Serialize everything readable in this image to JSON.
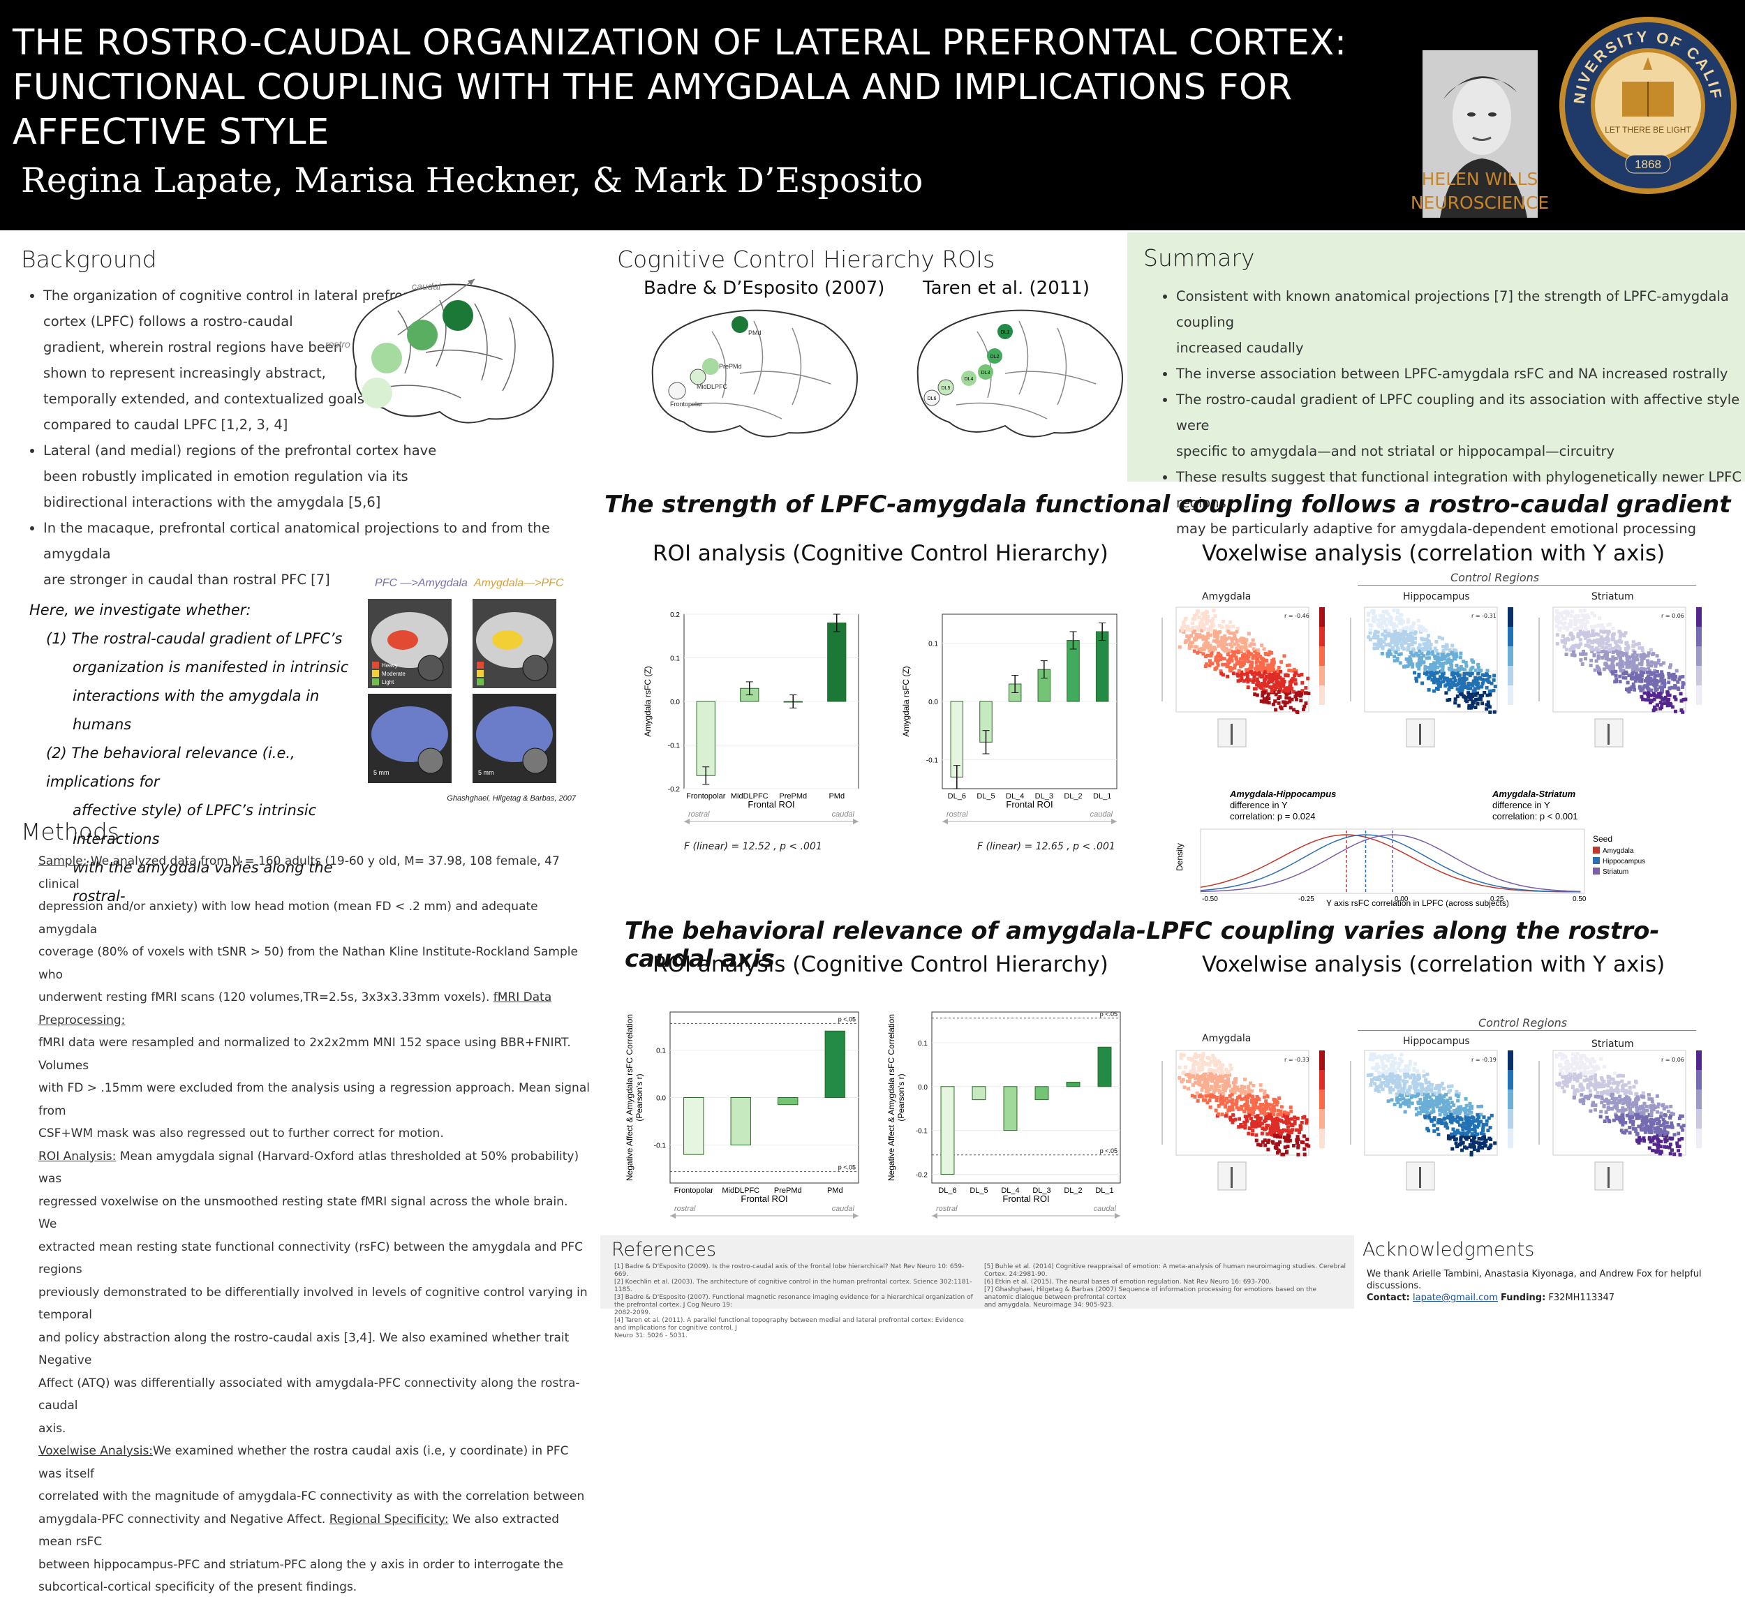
{
  "header": {
    "title_lines": [
      "THE ROSTRO-CAUDAL ORGANIZATION OF LATERAL PREFRONTAL CORTEX:",
      "FUNCTIONAL COUPLING WITH THE AMYGDALA AND IMPLICATIONS FOR",
      "AFFECTIVE STYLE"
    ],
    "authors": "Regina Lapate, Marisa Heckner, & Mark D’Esposito",
    "logo_text_1": "HELEN WILLS",
    "logo_text_2": "NEUROSCIENCE",
    "seal_text": "THE UNIVERSITY OF CALIFORNIA",
    "seal_year": "1868",
    "seal_motto": "LET THERE BE LIGHT",
    "colors": {
      "bg": "#000000",
      "text": "#ffffff",
      "logo": "#c8862a",
      "seal_gold": "#c58a2a",
      "seal_blue": "#1f3a68"
    }
  },
  "background": {
    "heading": "Background",
    "bullets": [
      [
        "The organization of cognitive control in lateral prefrontal",
        "cortex (LPFC) follows a rostro-caudal",
        "gradient, wherein rostral regions have been",
        "shown to represent increasingly abstract,",
        "temporally extended, and contextualized goals",
        "compared to caudal LPFC [1,2, 3, 4]"
      ],
      [
        "Lateral (and medial) regions of the prefrontal cortex have",
        "been robustly implicated in emotion regulation via its",
        "bidirectional interactions with the amygdala [5,6]"
      ],
      [
        "In the macaque, prefrontal cortical anatomical projections to and from the amygdala",
        "are stronger in caudal than rostral PFC [7]"
      ]
    ],
    "brain_label_caudal": "caudal",
    "brain_label_rostro": "rostro",
    "investigate_lines": [
      "Here, we investigate whether:",
      "(1)  The rostral-caudal gradient of LPFC’s",
      "organization is manifested in intrinsic",
      "interactions with the amygdala in humans",
      "(2)  The behavioral relevance (i.e., implications for",
      "affective style) of LPFC’s intrinsic interactions",
      "with the amygdala varies along the rostral-"
    ],
    "macaque_label_1": "PFC —>Amygdala",
    "macaque_label_2": "Amygdala—>PFC",
    "macaque_legend": [
      "Heavy",
      "Moderate",
      "Light"
    ],
    "macaque_scale": "5 mm",
    "macaque_credit": "Ghashghaei, Hilgetag & Barbas, 2007"
  },
  "methods": {
    "heading": "Methods",
    "lines": [
      [
        {
          "u": "Sample:"
        },
        " We analyzed data from N = 160 adults (19-60 y old, M= 37.98, 108 female, 47 clinical"
      ],
      [
        "depression and/or anxiety) with low head motion (mean FD < .2 mm) and adequate amygdala"
      ],
      [
        "coverage (80% of voxels with tSNR > 50) from the Nathan Kline Institute-Rockland Sample who"
      ],
      [
        "underwent resting fMRI scans (120 volumes,TR=2.5s, 3x3x3.33mm voxels). ",
        {
          "u": "fMRI Data Preprocessing:"
        }
      ],
      [
        "fMRI data were resampled and normalized to 2x2x2mm MNI 152 space using BBR+FNIRT. Volumes"
      ],
      [
        "with FD > .15mm were excluded from the analysis using a regression approach. Mean signal from"
      ],
      [
        "CSF+WM mask was also regressed out to further correct for motion."
      ],
      [
        {
          "u": "ROI Analysis:"
        },
        " Mean amygdala signal (Harvard-Oxford atlas thresholded at 50% probability) was"
      ],
      [
        "regressed voxelwise on the unsmoothed resting state fMRI signal across the whole brain.  We"
      ],
      [
        "extracted mean resting state functional connectivity (rsFC) between the amygdala and PFC regions"
      ],
      [
        "previously demonstrated to be differentially involved in levels of cognitive control varying in temporal"
      ],
      [
        "and policy abstraction along the rostro-caudal axis [3,4]. We also examined whether trait Negative"
      ],
      [
        "Affect (ATQ) was differentially associated with amygdala-PFC connectivity along the rostra-caudal"
      ],
      [
        "axis."
      ],
      [
        {
          "u": "Voxelwise Analysis:"
        },
        "We examined whether the rostra caudal axis (i.e, y coordinate) in PFC was itself"
      ],
      [
        "correlated with the magnitude of amygdala-FC connectivity as with the correlation between"
      ],
      [
        "amygdala-PFC connectivity and Negative Affect. ",
        {
          "u": "Regional Specificity:"
        },
        " We also extracted mean rsFC"
      ],
      [
        "between hippocampus-PFC and striatum-PFC along the y axis in order to interrogate the"
      ],
      [
        "subcortical-cortical specificity of the present findings."
      ]
    ]
  },
  "rois": {
    "heading": "Cognitive Control Hierarchy ROIs",
    "left_title": "Badre & D’Esposito (2007)",
    "right_title": "Taren et al. (2011)",
    "left_labels": [
      "PMd",
      "PrePMd",
      "MidDLPFC",
      "Frontopolar"
    ],
    "right_labels": [
      "DL1",
      "DL2",
      "DL3",
      "DL4",
      "DL5",
      "DL6"
    ]
  },
  "summary": {
    "heading": "Summary",
    "bullets": [
      [
        "Consistent with known anatomical projections [7] the strength of LPFC-amygdala coupling",
        "increased caudally"
      ],
      [
        "The inverse association between LPFC-amygdala rsFC and NA increased rostrally"
      ],
      [
        "The rostro-caudal gradient of LPFC coupling and its association with affective style were",
        "specific to amygdala—and not striatal or hippocampal—circuitry"
      ],
      [
        "These results suggest that functional integration with phylogenetically newer LPFC regions",
        "may be particularly adaptive for amygdala-dependent emotional processing"
      ]
    ]
  },
  "section1": {
    "heading": "The strength of LPFC-amygdala functional coupling follows a rostro-caudal gradient",
    "roi_title": "ROI analysis (Cognitive Control Hierarchy)",
    "vox_title": "Voxelwise analysis (correlation with Y axis)",
    "f_left": "F (linear) = 12.52 , p < .001",
    "f_right": "F (linear) = 12.65 , p < .001",
    "control_regions": "Control Regions",
    "panels": [
      "Amygdala",
      "Hippocampus",
      "Striatum"
    ],
    "panel_r": [
      "r = -0.46",
      "r = -0.31",
      "r = 0.06"
    ],
    "density_ann_1": [
      "Amygdala-Hippocampus",
      "difference in Y",
      "correlation:  p = 0.024"
    ],
    "density_ann_2": [
      "Amygdala-Striatum",
      "difference in Y",
      "correlation:  p < 0.001"
    ],
    "density_ylabel": "Density",
    "density_xlabel": "Y axis rsFC correlation in LPFC (across subjects)",
    "density_legend_title": "Seed",
    "density_legend": [
      "Amygdala",
      "Hippocampus",
      "Striatum"
    ],
    "density_ticks": [
      "-0.50",
      "-0.25",
      "0.00",
      "0.25",
      "0.50"
    ]
  },
  "section2": {
    "heading": "The behavioral relevance of amygdala-LPFC coupling varies along the rostro-caudal axis",
    "roi_title": "ROI analysis (Cognitive Control Hierarchy)",
    "vox_title": "Voxelwise analysis (correlation with Y axis)",
    "control_regions": "Control Regions",
    "panels": [
      "Amygdala",
      "Hippocampus",
      "Striatum"
    ],
    "panel_r": [
      "r = -0.33",
      "r = -0.19",
      "r = 0.06"
    ],
    "p_label": "p <.05"
  },
  "chart_data": [
    {
      "type": "bar",
      "categories": [
        "Frontopolar",
        "MidDLPFC",
        "PrePMd",
        "PMd"
      ],
      "values": [
        -0.17,
        0.03,
        0.0,
        0.18
      ],
      "errors": [
        0.02,
        0.015,
        0.015,
        0.02
      ],
      "xlabel": "Frontal ROI",
      "ylabel": "Amygdala rsFC (Z)",
      "ylim": [
        -0.2,
        0.2
      ],
      "yticks": [
        -0.2,
        -0.1,
        0.0,
        0.1,
        0.2
      ],
      "axis_note_left": "rostral",
      "axis_note_right": "caudal",
      "colors": [
        "#d9f0d3",
        "#a6dba0",
        "#f5f5f5",
        "#1b7837"
      ]
    },
    {
      "type": "bar",
      "categories": [
        "DL_6",
        "DL_5",
        "DL_4",
        "DL_3",
        "DL_2",
        "DL_1"
      ],
      "values": [
        -0.13,
        -0.07,
        0.03,
        0.055,
        0.105,
        0.12
      ],
      "errors": [
        0.02,
        0.02,
        0.015,
        0.015,
        0.015,
        0.015
      ],
      "xlabel": "Frontal ROI",
      "ylabel": "Amygdala rsFC (Z)",
      "ylim": [
        -0.15,
        0.15
      ],
      "yticks": [
        -0.1,
        0.0,
        0.1
      ],
      "axis_note_left": "rostral",
      "axis_note_right": "caudal",
      "colors": [
        "#e5f5e0",
        "#c7e9c0",
        "#a1d99b",
        "#74c476",
        "#41ab5d",
        "#238b45"
      ]
    },
    {
      "type": "bar",
      "categories": [
        "Frontopolar",
        "MidDLPFC",
        "PrePMd",
        "PMd"
      ],
      "values": [
        -0.12,
        -0.1,
        -0.015,
        0.14
      ],
      "xlabel": "Frontal ROI",
      "ylabel": "Negative Affect & Amygdala rsFC Correlation (Pearson's r)",
      "ylim": [
        -0.18,
        0.18
      ],
      "yticks": [
        -0.1,
        0.0,
        0.1
      ],
      "thresholds": [
        0.156,
        -0.156
      ],
      "axis_note_left": "rostral",
      "axis_note_right": "caudal",
      "colors": [
        "#e5f5e0",
        "#c7e9c0",
        "#74c476",
        "#238b45"
      ]
    },
    {
      "type": "bar",
      "categories": [
        "DL_6",
        "DL_5",
        "DL_4",
        "DL_3",
        "DL_2",
        "DL_1"
      ],
      "values": [
        -0.2,
        -0.03,
        -0.1,
        -0.03,
        0.01,
        0.09
      ],
      "xlabel": "Frontal ROI",
      "ylabel": "Negative Affect & Amygdala rsFC Correlation (Pearson's r)",
      "ylim": [
        -0.22,
        0.17
      ],
      "yticks": [
        -0.2,
        -0.1,
        0.0,
        0.1
      ],
      "thresholds": [
        0.156,
        -0.156
      ],
      "axis_note_left": "rostral",
      "axis_note_right": "caudal",
      "colors": [
        "#e5f5e0",
        "#c7e9c0",
        "#a1d99b",
        "#74c476",
        "#41ab5d",
        "#238b45"
      ]
    }
  ],
  "references": {
    "heading": "References",
    "left": [
      "[1] Badre & D'Esposito (2009). Is the rostro-caudal axis of the frontal lobe hierarchical? Nat Rev Neuro 10: 659-669.",
      "[2] Koechlin et al. (2003). The architecture of cognitive control in the human prefrontal cortex. Science 302:1181-1185.",
      "[3] Badre & D'Esposito (2007). Functional magnetic resonance imaging evidence for a hierarchical organization of the prefrontal cortex. J Cog Neuro 19:",
      "2082-2099.",
      "[4] Taren et al. (2011). A parallel functional topography between medial and lateral prefrontal cortex: Evidence and implications for cognitive control. J",
      "Neuro 31: 5026 - 5031."
    ],
    "right": [
      "[5] Buhle et al. (2014) Cognitive reappraisal of emotion: A meta-analysis of human neuroimaging studies. Cerebral Cortex. 24:2981-90.",
      "[6] Etkin et al. (2015). The neural bases of emotion regulation. Nat Rev Neuro 16: 693-700.",
      "[7] Ghashghaei, Hilgetag & Barbas (2007) Sequence of information processing for emotions based on the anatomic dialogue between prefrontal cortex",
      "and amygdala. Neuroimage 34: 905-923."
    ]
  },
  "acknowledgments": {
    "heading": "Acknowledgments",
    "text": "We thank Arielle Tambini, Anastasia Kiyonaga, and Andrew Fox for helpful discussions.",
    "contact_label": "Contact:",
    "contact_email": "lapate@gmail.com",
    "funding_label": "Funding:",
    "funding": "F32MH113347"
  }
}
